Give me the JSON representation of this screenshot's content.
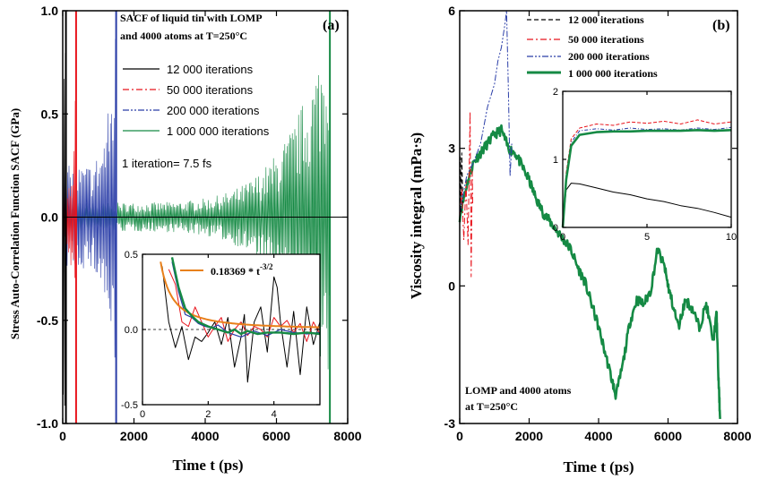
{
  "chart_data": [
    {
      "panel": "a",
      "type": "line",
      "panel_label": "(a)",
      "title_line1": "SACF of liquid tin with LOMP",
      "title_line2": "and 4000 atoms at T=250°C",
      "note": "1 iteration= 7.5 fs",
      "xlabel": "Time t (ps)",
      "ylabel": "Stress Auto-Correlation Function SACF (GPa)",
      "xlim": [
        0,
        8000
      ],
      "ylim": [
        -1.0,
        1.0
      ],
      "xticks": [
        "0",
        "2000",
        "4000",
        "6000",
        "8000"
      ],
      "yticks": [
        "-1.0",
        "-0.5",
        "0.0",
        "0.5",
        "1.0"
      ],
      "series": [
        {
          "name": "12 000 iterations",
          "color": "#000000",
          "dash": "solid",
          "t_end": 90,
          "amp_start": 1.0,
          "amp_end": 1.0
        },
        {
          "name": "50 000 iterations",
          "color": "#e8141c",
          "dash": "dashdot",
          "t_end": 375,
          "amp_start": 0.22,
          "amp_end": 1.0
        },
        {
          "name": "200 000 iterations",
          "color": "#2b3ea8",
          "dash": "dashdotdot",
          "t_end": 1500,
          "amp_start": 0.25,
          "amp_end": 1.0
        },
        {
          "name": "1 000 000 iterations",
          "color": "#158a44",
          "dash": "solid",
          "t_end": 7500,
          "amp_start": 0.07,
          "amp_end": 1.0
        }
      ],
      "inset": {
        "xlim": [
          0,
          5.4
        ],
        "ylim": [
          -0.5,
          0.5
        ],
        "xticks": [
          "0",
          "2",
          "4"
        ],
        "yticks": [
          "-0.5",
          "0.0",
          "0.5"
        ],
        "fit_label": "0.18369 * t",
        "fit_exponent": "-3/2",
        "fit_color": "#e8801a",
        "fit_coefficient": 0.18369,
        "black": [
          [
            0.6,
            0.42
          ],
          [
            0.8,
            0.05
          ],
          [
            1.0,
            -0.12
          ],
          [
            1.2,
            0.02
          ],
          [
            1.4,
            -0.2
          ],
          [
            1.6,
            -0.05
          ],
          [
            1.8,
            -0.08
          ],
          [
            2.0,
            -0.02
          ],
          [
            2.2,
            0.05
          ],
          [
            2.4,
            -0.1
          ],
          [
            2.6,
            0.08
          ],
          [
            2.8,
            -0.25
          ],
          [
            3.0,
            -0.05
          ],
          [
            3.1,
            0.1
          ],
          [
            3.2,
            -0.35
          ],
          [
            3.4,
            0.05
          ],
          [
            3.6,
            0.15
          ],
          [
            3.8,
            -0.15
          ],
          [
            4.0,
            0.35
          ],
          [
            4.1,
            0.28
          ],
          [
            4.2,
            0.05
          ],
          [
            4.4,
            -0.25
          ],
          [
            4.6,
            0.12
          ],
          [
            4.8,
            -0.3
          ],
          [
            5.0,
            0.15
          ],
          [
            5.2,
            -0.1
          ],
          [
            5.4,
            0.05
          ]
        ],
        "red": [
          [
            0.8,
            0.4
          ],
          [
            1.0,
            0.3
          ],
          [
            1.2,
            0.05
          ],
          [
            1.4,
            0.02
          ],
          [
            1.6,
            0.15
          ],
          [
            1.8,
            0.05
          ],
          [
            2.0,
            -0.05
          ],
          [
            2.2,
            0.02
          ],
          [
            2.4,
            0.08
          ],
          [
            2.6,
            -0.08
          ],
          [
            2.8,
            0.0
          ],
          [
            3.0,
            0.05
          ],
          [
            3.2,
            -0.04
          ],
          [
            3.4,
            0.02
          ],
          [
            3.6,
            0.0
          ],
          [
            3.8,
            -0.05
          ],
          [
            4.0,
            0.08
          ],
          [
            4.2,
            0.02
          ],
          [
            4.4,
            0.06
          ],
          [
            4.6,
            -0.02
          ],
          [
            4.8,
            0.04
          ],
          [
            5.0,
            -0.08
          ],
          [
            5.2,
            0.05
          ],
          [
            5.4,
            -0.03
          ]
        ],
        "blue": [
          [
            0.9,
            0.45
          ],
          [
            1.1,
            0.25
          ],
          [
            1.3,
            0.1
          ],
          [
            1.5,
            0.08
          ],
          [
            1.7,
            0.04
          ],
          [
            1.9,
            0.02
          ],
          [
            2.1,
            0.01
          ],
          [
            2.3,
            0.03
          ],
          [
            2.6,
            -0.02
          ],
          [
            3.0,
            -0.05
          ],
          [
            3.4,
            -0.01
          ],
          [
            3.8,
            -0.04
          ],
          [
            4.2,
            0.0
          ],
          [
            4.6,
            -0.02
          ],
          [
            5.0,
            -0.03
          ],
          [
            5.4,
            -0.02
          ]
        ],
        "green": [
          [
            0.9,
            0.48
          ],
          [
            1.1,
            0.28
          ],
          [
            1.3,
            0.14
          ],
          [
            1.5,
            0.09
          ],
          [
            1.7,
            0.05
          ],
          [
            2.0,
            0.02
          ],
          [
            2.3,
            0.0
          ],
          [
            2.6,
            -0.02
          ],
          [
            2.8,
            0.0
          ],
          [
            3.0,
            -0.03
          ],
          [
            3.2,
            -0.01
          ],
          [
            3.5,
            -0.03
          ],
          [
            3.8,
            -0.02
          ],
          [
            4.2,
            -0.02
          ],
          [
            4.6,
            -0.03
          ],
          [
            5.0,
            -0.02
          ],
          [
            5.4,
            -0.03
          ]
        ]
      }
    },
    {
      "panel": "b",
      "type": "line",
      "panel_label": "(b)",
      "note_line1": "LOMP and 4000 atoms",
      "note_line2": "at T=250°C",
      "xlabel": "Time t (ps)",
      "ylabel": "Viscosity integral  (mPa·s)",
      "xlim": [
        0,
        8000
      ],
      "ylim": [
        -3,
        6
      ],
      "xticks": [
        "0",
        "2000",
        "4000",
        "6000",
        "8000"
      ],
      "yticks": [
        "-3",
        "0",
        "3",
        "6"
      ],
      "series": [
        {
          "name": "12 000 iterations",
          "color": "#000000",
          "dash": "dashed",
          "points": [
            [
              0,
              1.2
            ],
            [
              20,
              2.8
            ],
            [
              40,
              1.6
            ],
            [
              60,
              2.9
            ],
            [
              90,
              1.8
            ]
          ]
        },
        {
          "name": "50 000 iterations",
          "color": "#e8141c",
          "dash": "dashdot",
          "points": [
            [
              0,
              1.5
            ],
            [
              60,
              2.1
            ],
            [
              120,
              1.0
            ],
            [
              180,
              2.3
            ],
            [
              240,
              0.9
            ],
            [
              300,
              3.8
            ],
            [
              330,
              0.2
            ],
            [
              360,
              2.5
            ],
            [
              375,
              1.8
            ]
          ]
        },
        {
          "name": "200 000 iterations",
          "color": "#2b3ea8",
          "dash": "dashdotdot",
          "points": [
            [
              0,
              1.6
            ],
            [
              200,
              2.4
            ],
            [
              400,
              2.7
            ],
            [
              600,
              3.1
            ],
            [
              800,
              3.9
            ],
            [
              1000,
              4.4
            ],
            [
              1100,
              4.9
            ],
            [
              1200,
              5.2
            ],
            [
              1300,
              5.7
            ],
            [
              1350,
              6.0
            ],
            [
              1400,
              4.3
            ],
            [
              1450,
              2.4
            ],
            [
              1500,
              3.1
            ]
          ]
        },
        {
          "name": "1 000 000 iterations",
          "color": "#158a44",
          "dash": "solid",
          "points": [
            [
              0,
              1.5
            ],
            [
              200,
              2.2
            ],
            [
              400,
              2.7
            ],
            [
              600,
              2.9
            ],
            [
              800,
              3.1
            ],
            [
              1000,
              3.3
            ],
            [
              1200,
              3.4
            ],
            [
              1400,
              3.0
            ],
            [
              1600,
              2.9
            ],
            [
              1800,
              2.6
            ],
            [
              2000,
              2.3
            ],
            [
              2200,
              1.9
            ],
            [
              2400,
              1.6
            ],
            [
              2600,
              1.4
            ],
            [
              2800,
              1.2
            ],
            [
              3000,
              1.0
            ],
            [
              3200,
              0.8
            ],
            [
              3400,
              0.4
            ],
            [
              3600,
              0.1
            ],
            [
              3800,
              -0.4
            ],
            [
              4000,
              -0.9
            ],
            [
              4200,
              -1.5
            ],
            [
              4400,
              -2.1
            ],
            [
              4500,
              -2.4
            ],
            [
              4700,
              -1.7
            ],
            [
              4900,
              -0.8
            ],
            [
              5100,
              -0.3
            ],
            [
              5300,
              -0.4
            ],
            [
              5500,
              -0.1
            ],
            [
              5700,
              0.8
            ],
            [
              5900,
              0.4
            ],
            [
              6000,
              0.0
            ],
            [
              6100,
              -0.3
            ],
            [
              6300,
              -0.9
            ],
            [
              6500,
              -0.3
            ],
            [
              6700,
              -0.5
            ],
            [
              6900,
              -0.9
            ],
            [
              7100,
              -0.4
            ],
            [
              7300,
              -1.2
            ],
            [
              7400,
              -0.6
            ],
            [
              7450,
              -2.0
            ],
            [
              7500,
              -2.9
            ]
          ]
        }
      ],
      "inset": {
        "xlim": [
          0,
          10
        ],
        "ylim": [
          0,
          2
        ],
        "xticks": [
          "0",
          "5",
          "10"
        ],
        "yticks": [
          "0",
          "1",
          "2"
        ],
        "black": [
          [
            0,
            0.0
          ],
          [
            0.2,
            0.55
          ],
          [
            0.5,
            0.65
          ],
          [
            1,
            0.64
          ],
          [
            2,
            0.58
          ],
          [
            3,
            0.52
          ],
          [
            4,
            0.48
          ],
          [
            5,
            0.42
          ],
          [
            6,
            0.38
          ],
          [
            7,
            0.32
          ],
          [
            8,
            0.28
          ],
          [
            9,
            0.22
          ],
          [
            10,
            0.15
          ]
        ],
        "red": [
          [
            0,
            0.0
          ],
          [
            0.2,
            0.8
          ],
          [
            0.5,
            1.3
          ],
          [
            1,
            1.46
          ],
          [
            2,
            1.52
          ],
          [
            3,
            1.5
          ],
          [
            4,
            1.55
          ],
          [
            5,
            1.53
          ],
          [
            6,
            1.56
          ],
          [
            7,
            1.52
          ],
          [
            8,
            1.58
          ],
          [
            9,
            1.52
          ],
          [
            10,
            1.55
          ]
        ],
        "blue": [
          [
            0,
            0.0
          ],
          [
            0.2,
            0.75
          ],
          [
            0.5,
            1.25
          ],
          [
            1,
            1.42
          ],
          [
            2,
            1.45
          ],
          [
            3,
            1.43
          ],
          [
            4,
            1.46
          ],
          [
            5,
            1.44
          ],
          [
            6,
            1.45
          ],
          [
            7,
            1.43
          ],
          [
            8,
            1.46
          ],
          [
            9,
            1.44
          ],
          [
            10,
            1.47
          ]
        ],
        "green": [
          [
            0,
            0.0
          ],
          [
            0.2,
            0.7
          ],
          [
            0.5,
            1.2
          ],
          [
            1,
            1.36
          ],
          [
            2,
            1.4
          ],
          [
            3,
            1.41
          ],
          [
            4,
            1.41
          ],
          [
            5,
            1.42
          ],
          [
            6,
            1.42
          ],
          [
            7,
            1.42
          ],
          [
            8,
            1.43
          ],
          [
            9,
            1.42
          ],
          [
            10,
            1.43
          ]
        ]
      }
    }
  ]
}
